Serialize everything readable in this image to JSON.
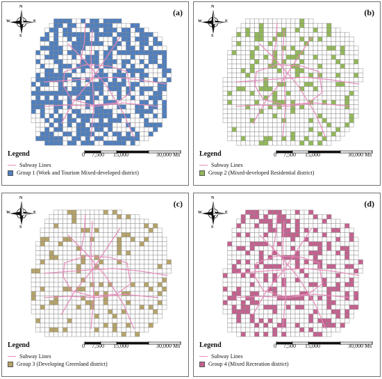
{
  "panels": [
    {
      "label": "(a)",
      "group_label": "Group 1 (Work and Tourism Mixed-developed district)",
      "fill_color": "#4f7fbf",
      "group_density": 0.58,
      "seed": 11
    },
    {
      "label": "(b)",
      "group_label": "Group 2 (Mixed-developed Residential district)",
      "fill_color": "#93b85a",
      "group_density": 0.15,
      "seed": 23
    },
    {
      "label": "(c)",
      "group_label": "Group 3 (Developing Greenland district)",
      "fill_color": "#b5a36a",
      "group_density": 0.13,
      "seed": 37
    },
    {
      "label": "(d)",
      "group_label": "Group 4 (Mixed Recreation district)",
      "fill_color": "#c4628f",
      "group_density": 0.26,
      "seed": 53
    }
  ],
  "legend": {
    "title": "Legend",
    "subway_label": "Subway Lines"
  },
  "compass": {
    "n": "N",
    "s": "S",
    "e": "E",
    "w": "W"
  },
  "scale_bar": {
    "ticks": [
      "0",
      "7,500",
      "15,000",
      "30,000 Ms"
    ]
  },
  "colors": {
    "subway": "#e58ab8",
    "grid_line": "#8a8a8a",
    "border": "#6f6f6f"
  }
}
